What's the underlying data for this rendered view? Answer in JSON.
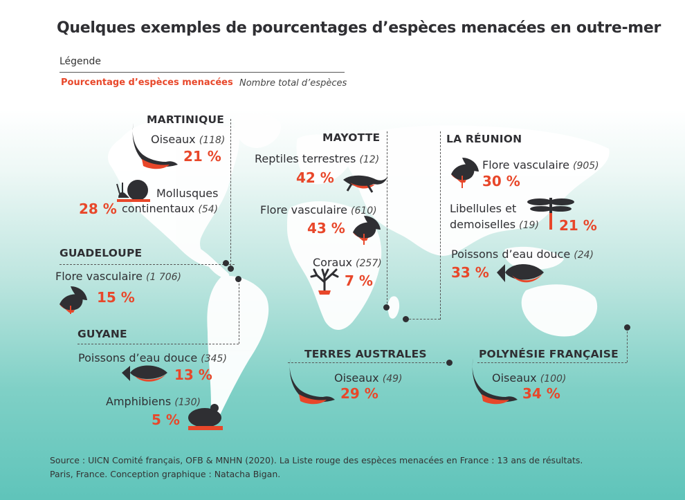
{
  "title": "Quelques exemples de pourcentages d’espèces menacées en outre-mer",
  "legend": {
    "heading": "Légende",
    "pct_label": "Pourcentage d’espèces menacées",
    "total_label": "Nombre total d’espèces"
  },
  "colors": {
    "accent": "#e8472a",
    "dark": "#2f2f33",
    "sea": "#5fc4ba"
  },
  "regions": {
    "martinique": {
      "name": "MARTINIQUE",
      "items": [
        {
          "species": "Oiseaux",
          "count": "(118)",
          "pct": "21 %",
          "icon": "bird-icon"
        },
        {
          "species": "Mollusques",
          "species2": "continentaux",
          "count": "(54)",
          "pct": "28 %",
          "icon": "snail-icon"
        }
      ]
    },
    "guadeloupe": {
      "name": "GUADELOUPE",
      "items": [
        {
          "species": "Flore vasculaire",
          "count": "(1 706)",
          "pct": "15 %",
          "icon": "leaf-icon"
        }
      ]
    },
    "guyane": {
      "name": "GUYANE",
      "items": [
        {
          "species": "Poissons d’eau douce",
          "count": "(345)",
          "pct": "13 %",
          "icon": "fish-icon"
        },
        {
          "species": "Amphibiens",
          "count": "(130)",
          "pct": "5 %",
          "icon": "frog-icon"
        }
      ]
    },
    "mayotte": {
      "name": "MAYOTTE",
      "items": [
        {
          "species": "Reptiles terrestres",
          "count": "(12)",
          "pct": "42 %",
          "icon": "lizard-icon"
        },
        {
          "species": "Flore vasculaire",
          "count": "(610)",
          "pct": "43 %",
          "icon": "leaf-icon"
        },
        {
          "species": "Coraux",
          "count": "(257)",
          "pct": "7 %",
          "icon": "coral-icon"
        }
      ]
    },
    "reunion": {
      "name": "LA RÉUNION",
      "items": [
        {
          "species": "Flore vasculaire",
          "count": "(905)",
          "pct": "30 %",
          "icon": "leaf-icon"
        },
        {
          "species": "Libellules et",
          "species2": "demoiselles",
          "count": "(19)",
          "pct": "21 %",
          "icon": "dragonfly-icon"
        },
        {
          "species": "Poissons d’eau douce",
          "count": "(24)",
          "pct": "33 %",
          "icon": "fish-icon"
        }
      ]
    },
    "terres_australes": {
      "name": "TERRES AUSTRALES",
      "items": [
        {
          "species": "Oiseaux",
          "count": "(49)",
          "pct": "29 %",
          "icon": "bird-icon"
        }
      ]
    },
    "polynesie": {
      "name": "POLYNÉSIE FRANÇAISE",
      "items": [
        {
          "species": "Oiseaux",
          "count": "(100)",
          "pct": "34 %",
          "icon": "bird-icon"
        }
      ]
    }
  },
  "source": {
    "line1": "Source : UICN Comité français, OFB & MNHN (2020). La Liste rouge des espèces menacées en France : 13 ans de résultats.",
    "line2": "Paris, France. Conception graphique : Natacha Bigan."
  }
}
